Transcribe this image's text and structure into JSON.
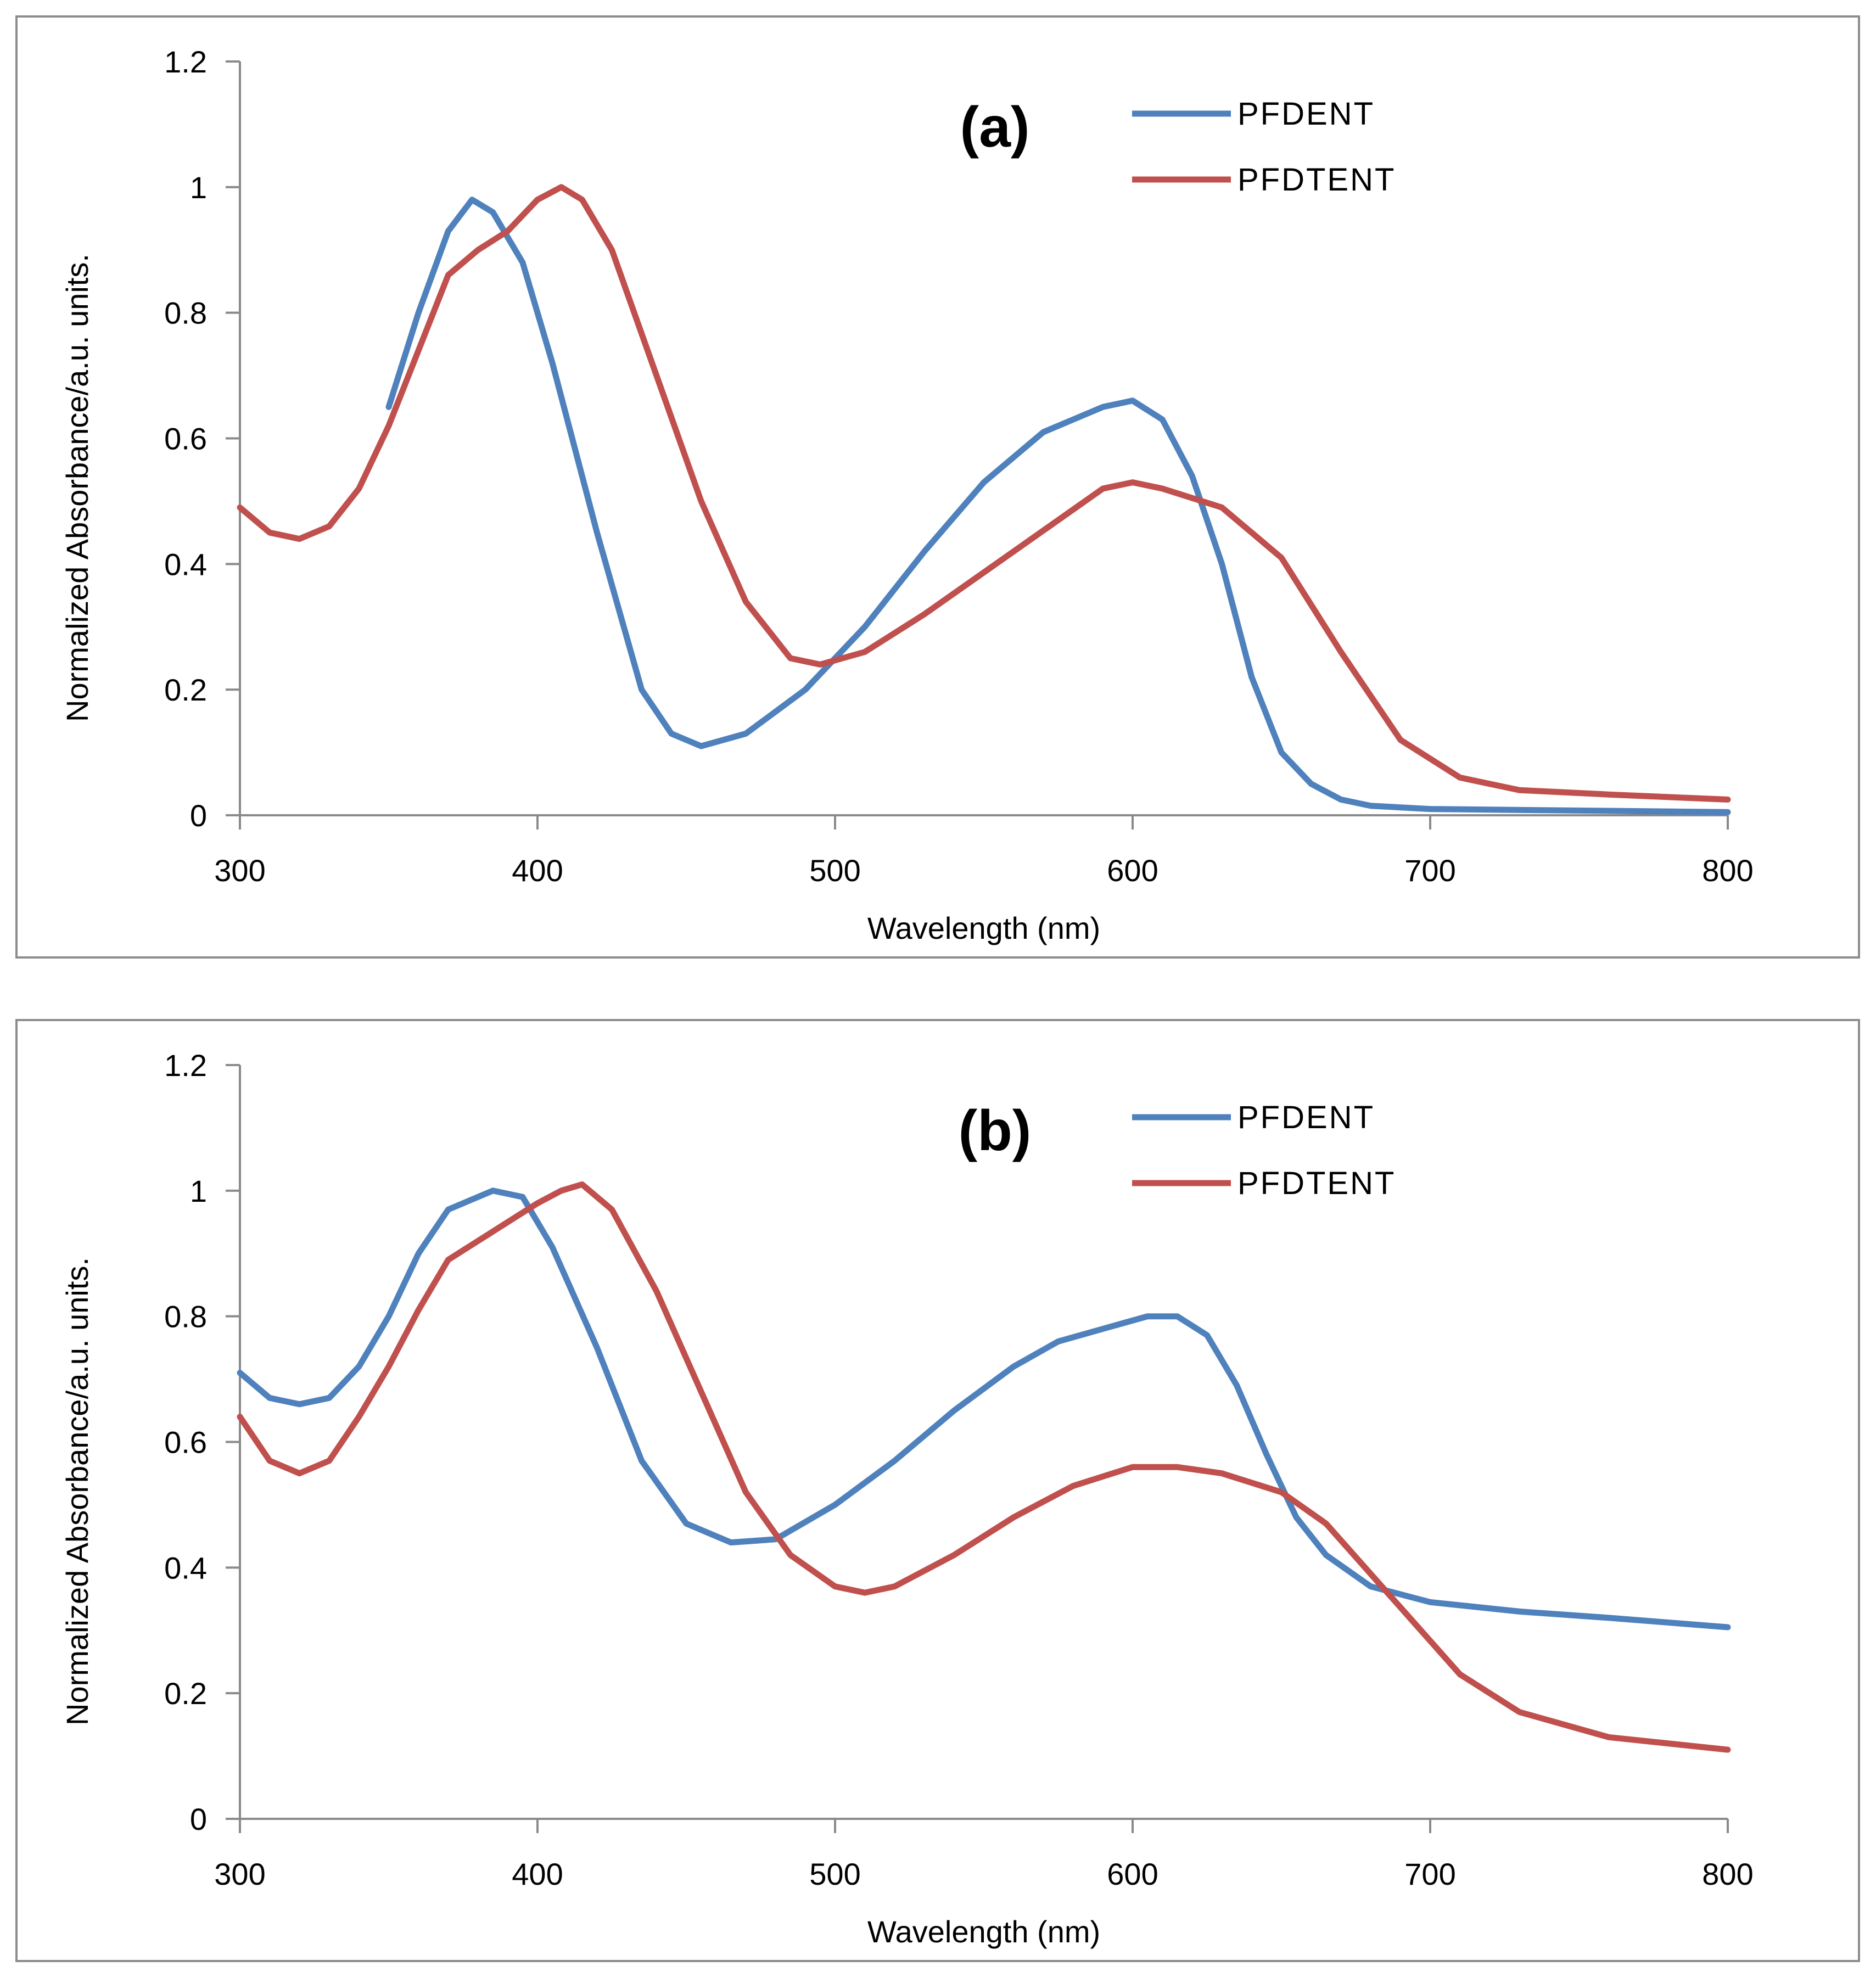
{
  "chart_data": [
    {
      "type": "line",
      "title": "(a)",
      "xlabel": "Wavelength (nm)",
      "ylabel": "Normalized Absorbance/a.u. units.",
      "xlim": [
        300,
        800
      ],
      "ylim": [
        0,
        1.2
      ],
      "xticks": [
        "300",
        "400",
        "500",
        "600",
        "700",
        "800"
      ],
      "yticks": [
        "0",
        "0.2",
        "0.4",
        "0.6",
        "0.8",
        "1",
        "1.2"
      ],
      "grid": false,
      "legend": "top-right",
      "series": [
        {
          "name": "PFDENT",
          "color": "#4f81bd",
          "x": [
            350,
            360,
            370,
            378,
            385,
            395,
            405,
            420,
            435,
            445,
            455,
            470,
            490,
            510,
            530,
            550,
            570,
            590,
            600,
            610,
            620,
            630,
            640,
            650,
            660,
            670,
            680,
            700,
            800
          ],
          "y": [
            0.65,
            0.8,
            0.93,
            0.98,
            0.96,
            0.88,
            0.72,
            0.45,
            0.2,
            0.13,
            0.11,
            0.13,
            0.2,
            0.3,
            0.42,
            0.53,
            0.61,
            0.65,
            0.66,
            0.63,
            0.54,
            0.4,
            0.22,
            0.1,
            0.05,
            0.025,
            0.015,
            0.01,
            0.005
          ]
        },
        {
          "name": "PFDTENT",
          "color": "#c0504d",
          "x": [
            300,
            310,
            320,
            330,
            340,
            350,
            360,
            370,
            380,
            390,
            400,
            408,
            415,
            425,
            440,
            455,
            470,
            485,
            495,
            510,
            530,
            560,
            590,
            600,
            610,
            630,
            650,
            670,
            690,
            710,
            730,
            760,
            800
          ],
          "y": [
            0.49,
            0.45,
            0.44,
            0.46,
            0.52,
            0.62,
            0.74,
            0.86,
            0.9,
            0.93,
            0.98,
            1.0,
            0.98,
            0.9,
            0.7,
            0.5,
            0.34,
            0.25,
            0.24,
            0.26,
            0.32,
            0.42,
            0.52,
            0.53,
            0.52,
            0.49,
            0.41,
            0.26,
            0.12,
            0.06,
            0.04,
            0.033,
            0.025
          ]
        }
      ]
    },
    {
      "type": "line",
      "title": "(b)",
      "xlabel": "Wavelength (nm)",
      "ylabel": "Normalized Absorbance/a.u. units.",
      "xlim": [
        300,
        800
      ],
      "ylim": [
        0,
        1.2
      ],
      "xticks": [
        "300",
        "400",
        "500",
        "600",
        "700",
        "800"
      ],
      "yticks": [
        "0",
        "0.2",
        "0.4",
        "0.6",
        "0.8",
        "1",
        "1.2"
      ],
      "grid": false,
      "legend": "top-right",
      "series": [
        {
          "name": "PFDENT",
          "color": "#4f81bd",
          "x": [
            300,
            310,
            320,
            330,
            340,
            350,
            360,
            370,
            385,
            395,
            405,
            420,
            435,
            450,
            465,
            480,
            500,
            520,
            540,
            560,
            575,
            590,
            605,
            615,
            625,
            635,
            645,
            655,
            665,
            680,
            700,
            730,
            760,
            800
          ],
          "y": [
            0.71,
            0.67,
            0.66,
            0.67,
            0.72,
            0.8,
            0.9,
            0.97,
            1.0,
            0.99,
            0.91,
            0.75,
            0.57,
            0.47,
            0.44,
            0.445,
            0.5,
            0.57,
            0.65,
            0.72,
            0.76,
            0.78,
            0.8,
            0.8,
            0.77,
            0.69,
            0.58,
            0.48,
            0.42,
            0.37,
            0.345,
            0.33,
            0.32,
            0.305
          ]
        },
        {
          "name": "PFDTENT",
          "color": "#c0504d",
          "x": [
            300,
            310,
            320,
            330,
            340,
            350,
            360,
            370,
            380,
            390,
            400,
            408,
            415,
            425,
            440,
            455,
            470,
            485,
            500,
            510,
            520,
            540,
            560,
            580,
            600,
            615,
            630,
            650,
            665,
            680,
            695,
            710,
            730,
            760,
            800
          ],
          "y": [
            0.64,
            0.57,
            0.55,
            0.57,
            0.64,
            0.72,
            0.81,
            0.89,
            0.92,
            0.95,
            0.98,
            1.0,
            1.01,
            0.97,
            0.84,
            0.68,
            0.52,
            0.42,
            0.37,
            0.36,
            0.37,
            0.42,
            0.48,
            0.53,
            0.56,
            0.56,
            0.55,
            0.52,
            0.47,
            0.39,
            0.31,
            0.23,
            0.17,
            0.13,
            0.11
          ]
        }
      ]
    }
  ]
}
